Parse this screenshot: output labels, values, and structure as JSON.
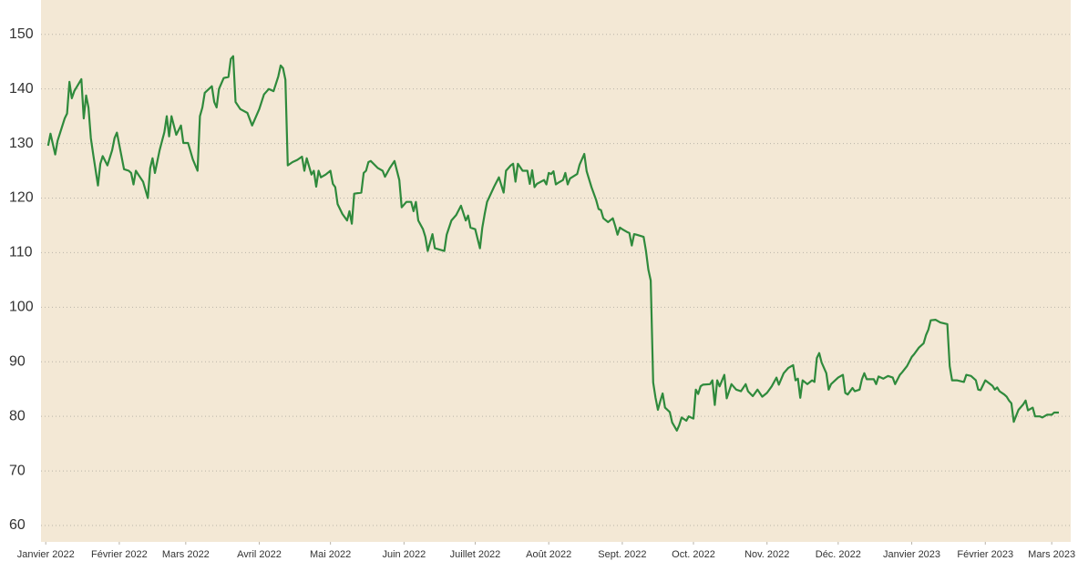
{
  "chart_data": {
    "type": "line",
    "color": "#2f8a3c",
    "grid": true,
    "xlim": [
      -2,
      432
    ],
    "xticks": [
      {
        "value": 0,
        "label": "Janvier 2022"
      },
      {
        "value": 31,
        "label": "Février 2022"
      },
      {
        "value": 59,
        "label": "Mars 2022"
      },
      {
        "value": 90,
        "label": "Avril 2022"
      },
      {
        "value": 120,
        "label": "Mai 2022"
      },
      {
        "value": 151,
        "label": "Juin 2022"
      },
      {
        "value": 181,
        "label": "Juillet 2022"
      },
      {
        "value": 212,
        "label": "Août 2022"
      },
      {
        "value": 243,
        "label": "Sept. 2022"
      },
      {
        "value": 273,
        "label": "Oct. 2022"
      },
      {
        "value": 304,
        "label": "Nov. 2022"
      },
      {
        "value": 334,
        "label": "Déc. 2022"
      },
      {
        "value": 365,
        "label": "Janvier 2023"
      },
      {
        "value": 396,
        "label": "Février 2023"
      },
      {
        "value": 424,
        "label": "Mars 2023"
      }
    ],
    "ylim": [
      57,
      156.3
    ],
    "yticks": [
      60,
      70,
      80,
      90,
      100,
      110,
      120,
      130,
      140,
      150
    ],
    "x": [
      1,
      2,
      4,
      5,
      8,
      9,
      10,
      11,
      12,
      15,
      16,
      17,
      18,
      19,
      20,
      22,
      23,
      24,
      26,
      28,
      29,
      30,
      33,
      35,
      36,
      37,
      38,
      39,
      41,
      43,
      44,
      45,
      46,
      48,
      50,
      51,
      52,
      53,
      55,
      57,
      58,
      60,
      62,
      64,
      65,
      66,
      67,
      70,
      71,
      72,
      73,
      75,
      77,
      78,
      79,
      80,
      82,
      85,
      87,
      90,
      92,
      94,
      96,
      98,
      99,
      100,
      101,
      102,
      104,
      106,
      108,
      109,
      110,
      112,
      113,
      114,
      115,
      116,
      118,
      120,
      121,
      122,
      123,
      125,
      127,
      128,
      129,
      130,
      133,
      134,
      135,
      136,
      137,
      140,
      142,
      143,
      145,
      147,
      149,
      150,
      152,
      154,
      155,
      156,
      157,
      159,
      160,
      161,
      163,
      164,
      168,
      169,
      171,
      173,
      175,
      177,
      178,
      179,
      181,
      183,
      184,
      185,
      186,
      189,
      191,
      193,
      194,
      196,
      197,
      198,
      199,
      201,
      203,
      204,
      205,
      206,
      207,
      210,
      211,
      212,
      213,
      214,
      215,
      216,
      218,
      219,
      220,
      221,
      224,
      225,
      227,
      228,
      230,
      232,
      233,
      234,
      235,
      237,
      239,
      240,
      241,
      242,
      243,
      245,
      246,
      247,
      248,
      249,
      252,
      253,
      254,
      255,
      256,
      257,
      258,
      259,
      260,
      261,
      263,
      264,
      266,
      267,
      268,
      270,
      271,
      273,
      274,
      275,
      276,
      277,
      280,
      281,
      282,
      283,
      284,
      286,
      287,
      289,
      291,
      293,
      295,
      296,
      298,
      300,
      302,
      304,
      306,
      308,
      309,
      311,
      313,
      315,
      316,
      317,
      318,
      319,
      321,
      323,
      324,
      325,
      326,
      327,
      329,
      330,
      331,
      334,
      336,
      337,
      338,
      340,
      341,
      343,
      344,
      345,
      346,
      349,
      350,
      351,
      353,
      355,
      357,
      358,
      360,
      361,
      363,
      365,
      366,
      368,
      370,
      371,
      372,
      373,
      375,
      377,
      380,
      381,
      382,
      384,
      387,
      388,
      390,
      392,
      393,
      394,
      396,
      399,
      400,
      401,
      402,
      404,
      405,
      406,
      407,
      408,
      410,
      412,
      413,
      414,
      416,
      417,
      419,
      420,
      422,
      424,
      425,
      427
    ],
    "values": [
      129.6,
      131.8,
      128.0,
      130.5,
      134.6,
      135.5,
      141.3,
      138.3,
      139.6,
      141.8,
      134.6,
      138.8,
      136.6,
      131.0,
      128.0,
      122.3,
      126.3,
      127.7,
      126.0,
      128.8,
      131.0,
      132.0,
      125.3,
      125.0,
      124.6,
      122.5,
      125.0,
      124.3,
      123.0,
      120.0,
      125.5,
      127.3,
      124.6,
      128.8,
      132.1,
      135.0,
      131.3,
      135.0,
      131.6,
      133.3,
      130.1,
      130.1,
      127.1,
      125.0,
      135.0,
      136.6,
      139.3,
      140.5,
      137.6,
      136.6,
      140.0,
      142.0,
      142.2,
      145.5,
      146.0,
      137.6,
      136.3,
      135.6,
      133.3,
      136.3,
      139.0,
      140.0,
      139.6,
      142.3,
      144.3,
      143.8,
      141.7,
      126.0,
      126.6,
      127.0,
      127.6,
      125.0,
      127.3,
      124.3,
      125.0,
      122.1,
      125.0,
      123.8,
      124.3,
      125.0,
      122.6,
      122.0,
      118.9,
      117.1,
      115.9,
      117.6,
      115.3,
      120.8,
      121.0,
      124.6,
      125.0,
      126.6,
      126.8,
      125.5,
      125.0,
      123.9,
      125.5,
      126.8,
      123.3,
      118.3,
      119.3,
      119.3,
      117.6,
      119.3,
      115.9,
      114.3,
      112.9,
      110.3,
      113.4,
      110.8,
      110.3,
      113.3,
      115.9,
      116.9,
      118.6,
      115.9,
      116.8,
      114.6,
      114.3,
      110.8,
      114.6,
      117.1,
      119.3,
      122.1,
      123.8,
      121.0,
      125.0,
      126.0,
      126.3,
      123.0,
      126.3,
      125.0,
      125.0,
      122.6,
      125.1,
      122.0,
      122.6,
      123.3,
      122.5,
      124.6,
      124.4,
      124.9,
      122.5,
      122.8,
      123.3,
      124.6,
      122.5,
      123.6,
      124.4,
      126.1,
      128.1,
      124.9,
      122.0,
      119.6,
      118.0,
      117.8,
      116.3,
      115.6,
      116.3,
      114.9,
      113.3,
      114.6,
      114.3,
      113.8,
      113.6,
      111.3,
      113.4,
      113.3,
      112.9,
      110.3,
      106.9,
      104.9,
      86.2,
      83.4,
      81.2,
      82.8,
      84.2,
      81.6,
      80.8,
      78.9,
      77.4,
      78.4,
      79.8,
      79.2,
      80.0,
      79.6,
      84.9,
      84.1,
      85.5,
      85.8,
      85.9,
      86.6,
      82.1,
      86.6,
      85.5,
      87.6,
      83.3,
      85.9,
      84.9,
      84.6,
      85.9,
      84.6,
      83.7,
      84.9,
      83.6,
      84.3,
      85.5,
      87.1,
      85.8,
      87.9,
      88.9,
      89.4,
      86.6,
      86.9,
      83.4,
      86.6,
      85.9,
      86.6,
      86.3,
      90.7,
      91.6,
      89.9,
      87.9,
      84.9,
      85.9,
      87.1,
      87.6,
      84.3,
      84.0,
      85.2,
      84.6,
      84.9,
      86.8,
      87.9,
      86.8,
      86.8,
      85.9,
      87.3,
      86.9,
      87.4,
      87.1,
      85.9,
      87.6,
      88.1,
      89.2,
      90.9,
      91.4,
      92.6,
      93.4,
      94.9,
      95.9,
      97.6,
      97.7,
      97.2,
      96.9,
      89.2,
      86.6,
      86.6,
      86.3,
      87.6,
      87.4,
      86.6,
      84.9,
      84.8,
      86.6,
      85.6,
      84.9,
      85.3,
      84.6,
      84.0,
      83.6,
      82.9,
      82.4,
      79.0,
      81.2,
      82.2,
      82.9,
      81.1,
      81.6,
      80.0,
      80.0,
      79.8,
      80.3,
      80.3,
      80.7,
      80.7
    ]
  }
}
